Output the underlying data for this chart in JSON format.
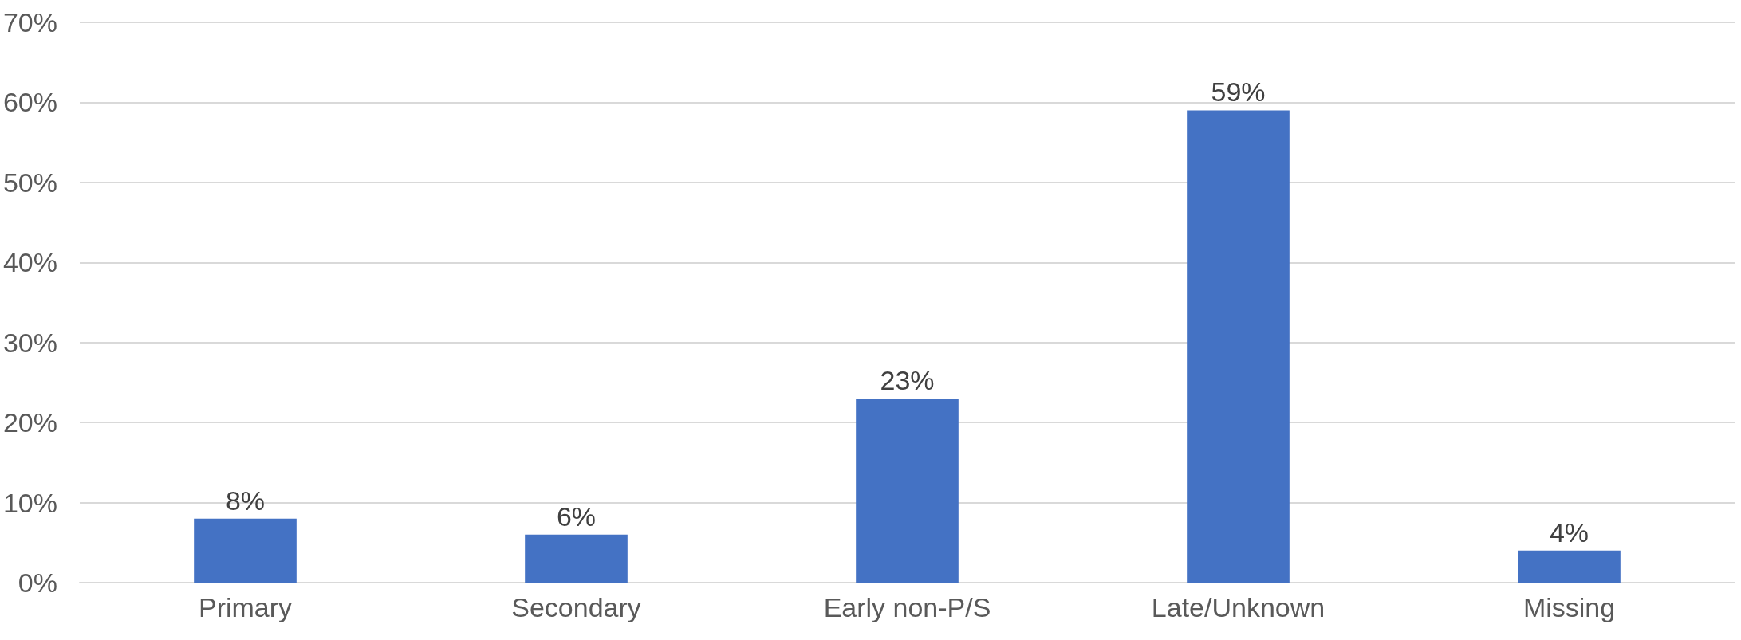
{
  "chart_data": {
    "type": "bar",
    "categories": [
      "Primary",
      "Secondary",
      "Early non-P/S",
      "Late/Unknown",
      "Missing"
    ],
    "values": [
      8,
      6,
      23,
      59,
      4
    ],
    "value_labels": [
      "8%",
      "6%",
      "23%",
      "59%",
      "4%"
    ],
    "color": "#4472c4",
    "ylim": [
      0,
      70
    ],
    "yticks": [
      {
        "value": 0,
        "label": "0%"
      },
      {
        "value": 10,
        "label": "10%"
      },
      {
        "value": 20,
        "label": "20%"
      },
      {
        "value": 30,
        "label": "30%"
      },
      {
        "value": 40,
        "label": "40%"
      },
      {
        "value": 50,
        "label": "50%"
      },
      {
        "value": 60,
        "label": "60%"
      },
      {
        "value": 70,
        "label": "70%"
      }
    ],
    "grid": "y"
  }
}
